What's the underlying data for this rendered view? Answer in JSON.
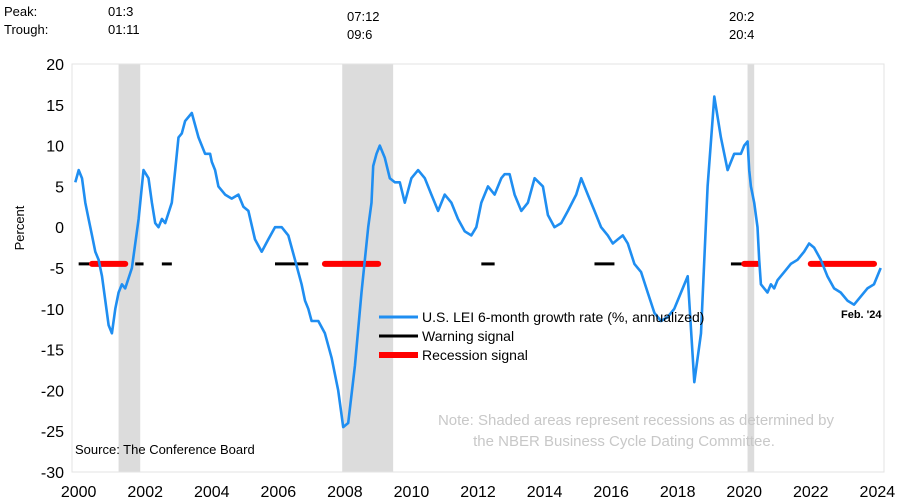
{
  "header": {
    "peak_label": "Peak:",
    "trough_label": "Trough:",
    "recessions": [
      {
        "peak": "01:3",
        "trough": "01:11"
      },
      {
        "peak": "07:12",
        "trough": "09:6"
      },
      {
        "peak": "20:2",
        "trough": "20:4"
      }
    ]
  },
  "chart_data": {
    "type": "line",
    "ylabel": "Percent",
    "xlabel": "",
    "ylim": [
      -30,
      20
    ],
    "xlim": [
      1999.8,
      2024.2
    ],
    "yticks": [
      20,
      15,
      10,
      5,
      0,
      -5,
      -10,
      -15,
      -20,
      -25,
      -30
    ],
    "xticks": [
      "2000",
      "2002",
      "2004",
      "2006",
      "2008",
      "2010",
      "2012",
      "2014",
      "2016",
      "2018",
      "2020",
      "2022",
      "2024"
    ],
    "recession_periods": [
      [
        2001.2,
        2001.85
      ],
      [
        2007.92,
        2009.45
      ],
      [
        2020.1,
        2020.3
      ]
    ],
    "series": [
      {
        "name": "U.S. LEI 6-month growth rate (%, annualized)",
        "color": "#1f8ef1",
        "x": [
          1999.9,
          2000.0,
          2000.1,
          2000.2,
          2000.3,
          2000.4,
          2000.5,
          2000.6,
          2000.7,
          2000.8,
          2000.9,
          2001.0,
          2001.1,
          2001.2,
          2001.3,
          2001.4,
          2001.6,
          2001.8,
          2001.95,
          2002.1,
          2002.2,
          2002.3,
          2002.4,
          2002.5,
          2002.6,
          2002.8,
          2002.9,
          2003.0,
          2003.1,
          2003.2,
          2003.4,
          2003.6,
          2003.8,
          2003.95,
          2004.0,
          2004.1,
          2004.2,
          2004.4,
          2004.6,
          2004.8,
          2004.95,
          2005.1,
          2005.3,
          2005.5,
          2005.7,
          2005.9,
          2006.1,
          2006.3,
          2006.5,
          2006.7,
          2006.8,
          2006.9,
          2007.0,
          2007.2,
          2007.4,
          2007.6,
          2007.8,
          2007.95,
          2008.1,
          2008.3,
          2008.5,
          2008.7,
          2008.8,
          2008.85,
          2008.95,
          2009.05,
          2009.2,
          2009.35,
          2009.5,
          2009.65,
          2009.8,
          2010.0,
          2010.2,
          2010.4,
          2010.6,
          2010.8,
          2011.0,
          2011.2,
          2011.4,
          2011.6,
          2011.8,
          2011.95,
          2012.1,
          2012.3,
          2012.5,
          2012.7,
          2012.8,
          2012.95,
          2013.1,
          2013.3,
          2013.5,
          2013.7,
          2013.95,
          2014.1,
          2014.3,
          2014.5,
          2014.7,
          2014.95,
          2015.1,
          2015.3,
          2015.5,
          2015.7,
          2015.9,
          2016.05,
          2016.2,
          2016.35,
          2016.5,
          2016.7,
          2016.9,
          2017.1,
          2017.3,
          2017.5,
          2017.7,
          2017.9,
          2018.1,
          2018.3,
          2018.5,
          2018.7,
          2018.9,
          2019.1,
          2019.3,
          2019.5,
          2019.7,
          2019.9,
          2020.0,
          2020.1,
          2020.15,
          2020.2,
          2020.3,
          2020.4,
          2020.45,
          2020.5,
          2020.6,
          2020.7,
          2020.8,
          2020.9,
          2021.0,
          2021.2,
          2021.4,
          2021.6,
          2021.8,
          2021.95,
          2022.1,
          2022.3,
          2022.5,
          2022.7,
          2022.9,
          2023.1,
          2023.3,
          2023.5,
          2023.7,
          2023.9,
          2024.1
        ],
        "values": [
          5.5,
          7,
          6,
          3,
          1,
          -1,
          -3,
          -4,
          -6,
          -9,
          -12,
          -13,
          -10,
          -8,
          -7,
          -7.5,
          -5,
          1,
          7,
          6,
          3,
          0.5,
          0,
          1,
          0.5,
          3,
          7,
          11,
          11.5,
          13,
          14,
          11,
          9,
          9,
          8,
          7,
          5,
          4,
          3.5,
          4,
          2.5,
          2,
          -1.5,
          -3,
          -1.5,
          0,
          0,
          -1,
          -4,
          -7,
          -9,
          -10,
          -11.5,
          -11.5,
          -13,
          -16,
          -20,
          -24.5,
          -24,
          -17,
          -8,
          0,
          3,
          7.5,
          9,
          10,
          8.5,
          6,
          5.5,
          5.5,
          3,
          6,
          7,
          6,
          4,
          2,
          4,
          3,
          1,
          -0.5,
          -1,
          0,
          3,
          5,
          4,
          6,
          6.5,
          6.5,
          4,
          2,
          3,
          6,
          5,
          1.5,
          0,
          0.5,
          2,
          4,
          6,
          4,
          2,
          0,
          -1,
          -2,
          -1.5,
          -1,
          -2,
          -4.5,
          -5.5,
          -8,
          -10.5,
          -11.5,
          -11,
          -10,
          -8,
          -6,
          -19,
          -13,
          5,
          16,
          11,
          7,
          9,
          9,
          10,
          10.5,
          7,
          5,
          3,
          0,
          -4,
          -7,
          -7.5,
          -8,
          -7,
          -7.5,
          -6.5,
          -5.5,
          -4.5,
          -4,
          -3,
          -2,
          -2.5,
          -4,
          -6,
          -7.5,
          -8,
          -9,
          -9.5,
          -8.5,
          -7.5,
          -7,
          -5
        ]
      },
      {
        "name": "Warning signal",
        "color": "#000000",
        "value": -4.5,
        "segments": [
          [
            2000.0,
            2001.4
          ],
          [
            2001.7,
            2001.95
          ],
          [
            2002.5,
            2002.8
          ],
          [
            2005.9,
            2006.9
          ],
          [
            2012.1,
            2012.5
          ],
          [
            2015.5,
            2016.1
          ],
          [
            2019.6,
            2019.95
          ]
        ]
      },
      {
        "name": "Recession signal",
        "color": "#ff0000",
        "value": -4.5,
        "segments": [
          [
            2000.4,
            2001.4
          ],
          [
            2007.4,
            2009.0
          ],
          [
            2020.0,
            2020.4
          ],
          [
            2022.0,
            2023.9
          ]
        ]
      }
    ],
    "annotations": {
      "last_point": "Feb. '24",
      "source": "Source: The Conference Board",
      "note_line1": "Note: Shaded areas represent recessions as determined by",
      "note_line2": "the NBER Business Cycle Dating Committee."
    }
  }
}
